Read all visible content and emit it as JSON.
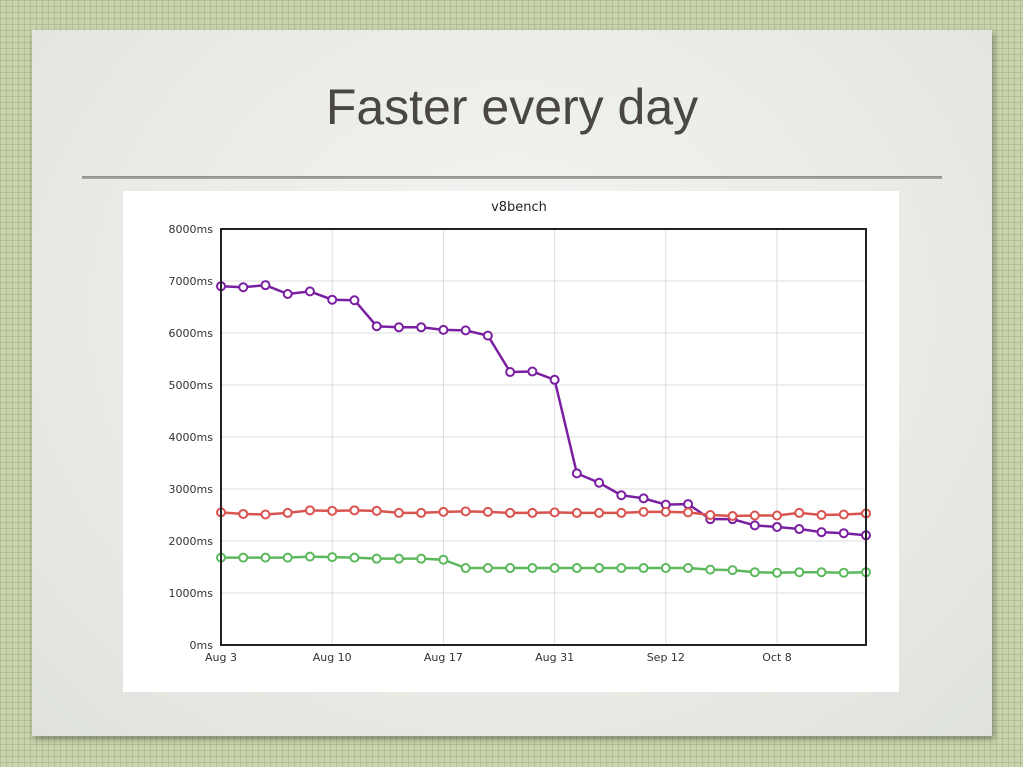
{
  "slide": {
    "title": "Faster every day"
  },
  "chart_data": {
    "type": "line",
    "title": "v8bench",
    "xlabel": "",
    "ylabel": "",
    "ylim": [
      0,
      8000
    ],
    "y_ticks": [
      "0ms",
      "1000ms",
      "2000ms",
      "3000ms",
      "4000ms",
      "5000ms",
      "6000ms",
      "7000ms",
      "8000ms"
    ],
    "x_tick_labels": [
      "Aug 3",
      "Aug 10",
      "Aug 17",
      "Aug 31",
      "Sep 12",
      "Oct 8"
    ],
    "x_tick_positions": [
      0,
      5,
      10,
      15,
      20,
      25
    ],
    "x_range": [
      0,
      29
    ],
    "grid": true,
    "series": [
      {
        "color": "#7b1fa2",
        "values": [
          6900,
          6880,
          6920,
          6750,
          6800,
          6640,
          6630,
          6130,
          6110,
          6110,
          6060,
          6050,
          5950,
          5250,
          5260,
          5100,
          3300,
          3120,
          2880,
          2820,
          2700,
          2710,
          2420,
          2420,
          2300,
          2270,
          2230,
          2170,
          2150,
          2110
        ]
      },
      {
        "color": "#d9534f",
        "values": [
          2550,
          2520,
          2510,
          2540,
          2590,
          2580,
          2590,
          2580,
          2540,
          2540,
          2560,
          2570,
          2560,
          2540,
          2540,
          2550,
          2540,
          2540,
          2540,
          2560,
          2560,
          2550,
          2500,
          2480,
          2490,
          2490,
          2540,
          2500,
          2510,
          2530
        ]
      },
      {
        "color": "#5cb85c",
        "values": [
          1680,
          1680,
          1680,
          1680,
          1700,
          1690,
          1680,
          1660,
          1660,
          1660,
          1640,
          1480,
          1480,
          1480,
          1480,
          1480,
          1480,
          1480,
          1480,
          1480,
          1480,
          1480,
          1450,
          1440,
          1400,
          1390,
          1400,
          1400,
          1390,
          1400
        ]
      }
    ]
  }
}
